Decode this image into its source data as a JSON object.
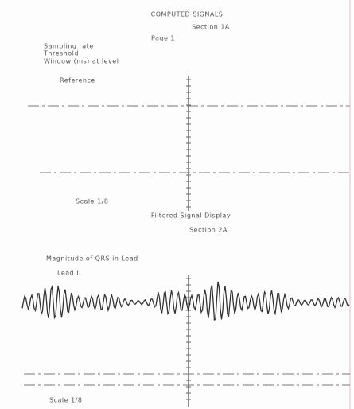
{
  "header": {
    "title": "COMPUTED SIGNALS",
    "subtitle": "Section 1A",
    "page": "Page 1"
  },
  "parameters": [
    "Sampling rate",
    "Threshold",
    "Window (ms) at level"
  ],
  "plot1": {
    "label": "Reference",
    "footnote": "Scale 1/8"
  },
  "section2": {
    "title": "Filtered Signal Display",
    "subtitle": "Section 2A"
  },
  "plot2": {
    "caption": "Magnitude of QRS in Lead",
    "label": "Lead II",
    "footnote": "Scale 1/8"
  }
}
